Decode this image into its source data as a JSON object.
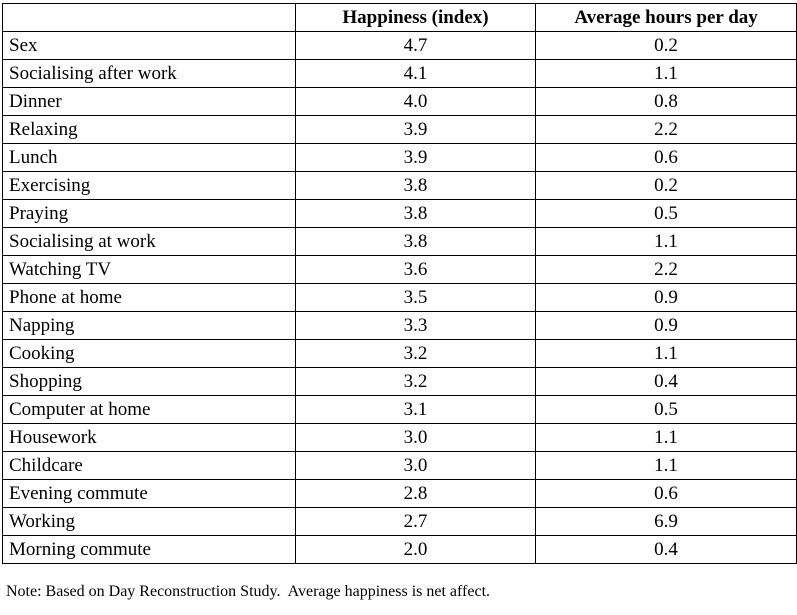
{
  "table": {
    "headers": {
      "activity": "",
      "happiness": "Happiness (index)",
      "hours": "Average hours per day"
    },
    "rows": [
      {
        "activity": "Sex",
        "happiness": "4.7",
        "hours": "0.2"
      },
      {
        "activity": "Socialising after work",
        "happiness": "4.1",
        "hours": "1.1"
      },
      {
        "activity": "Dinner",
        "happiness": "4.0",
        "hours": "0.8"
      },
      {
        "activity": "Relaxing",
        "happiness": "3.9",
        "hours": "2.2"
      },
      {
        "activity": "Lunch",
        "happiness": "3.9",
        "hours": "0.6"
      },
      {
        "activity": "Exercising",
        "happiness": "3.8",
        "hours": "0.2"
      },
      {
        "activity": "Praying",
        "happiness": "3.8",
        "hours": "0.5"
      },
      {
        "activity": "Socialising at work",
        "happiness": "3.8",
        "hours": "1.1"
      },
      {
        "activity": "Watching TV",
        "happiness": "3.6",
        "hours": "2.2"
      },
      {
        "activity": "Phone at home",
        "happiness": "3.5",
        "hours": "0.9"
      },
      {
        "activity": "Napping",
        "happiness": "3.3",
        "hours": "0.9"
      },
      {
        "activity": "Cooking",
        "happiness": "3.2",
        "hours": "1.1"
      },
      {
        "activity": "Shopping",
        "happiness": "3.2",
        "hours": "0.4"
      },
      {
        "activity": "Computer at home",
        "happiness": "3.1",
        "hours": "0.5"
      },
      {
        "activity": "Housework",
        "happiness": "3.0",
        "hours": "1.1"
      },
      {
        "activity": "Childcare",
        "happiness": "3.0",
        "hours": "1.1"
      },
      {
        "activity": "Evening commute",
        "happiness": "2.8",
        "hours": "0.6"
      },
      {
        "activity": "Working",
        "happiness": "2.7",
        "hours": "6.9"
      },
      {
        "activity": "Morning commute",
        "happiness": "2.0",
        "hours": "0.4"
      }
    ]
  },
  "note": "Note: Based on Day Reconstruction Study.  Average happiness is net affect.",
  "colors": {
    "border": "#000000",
    "background": "#ffffff",
    "text": "#000000"
  }
}
